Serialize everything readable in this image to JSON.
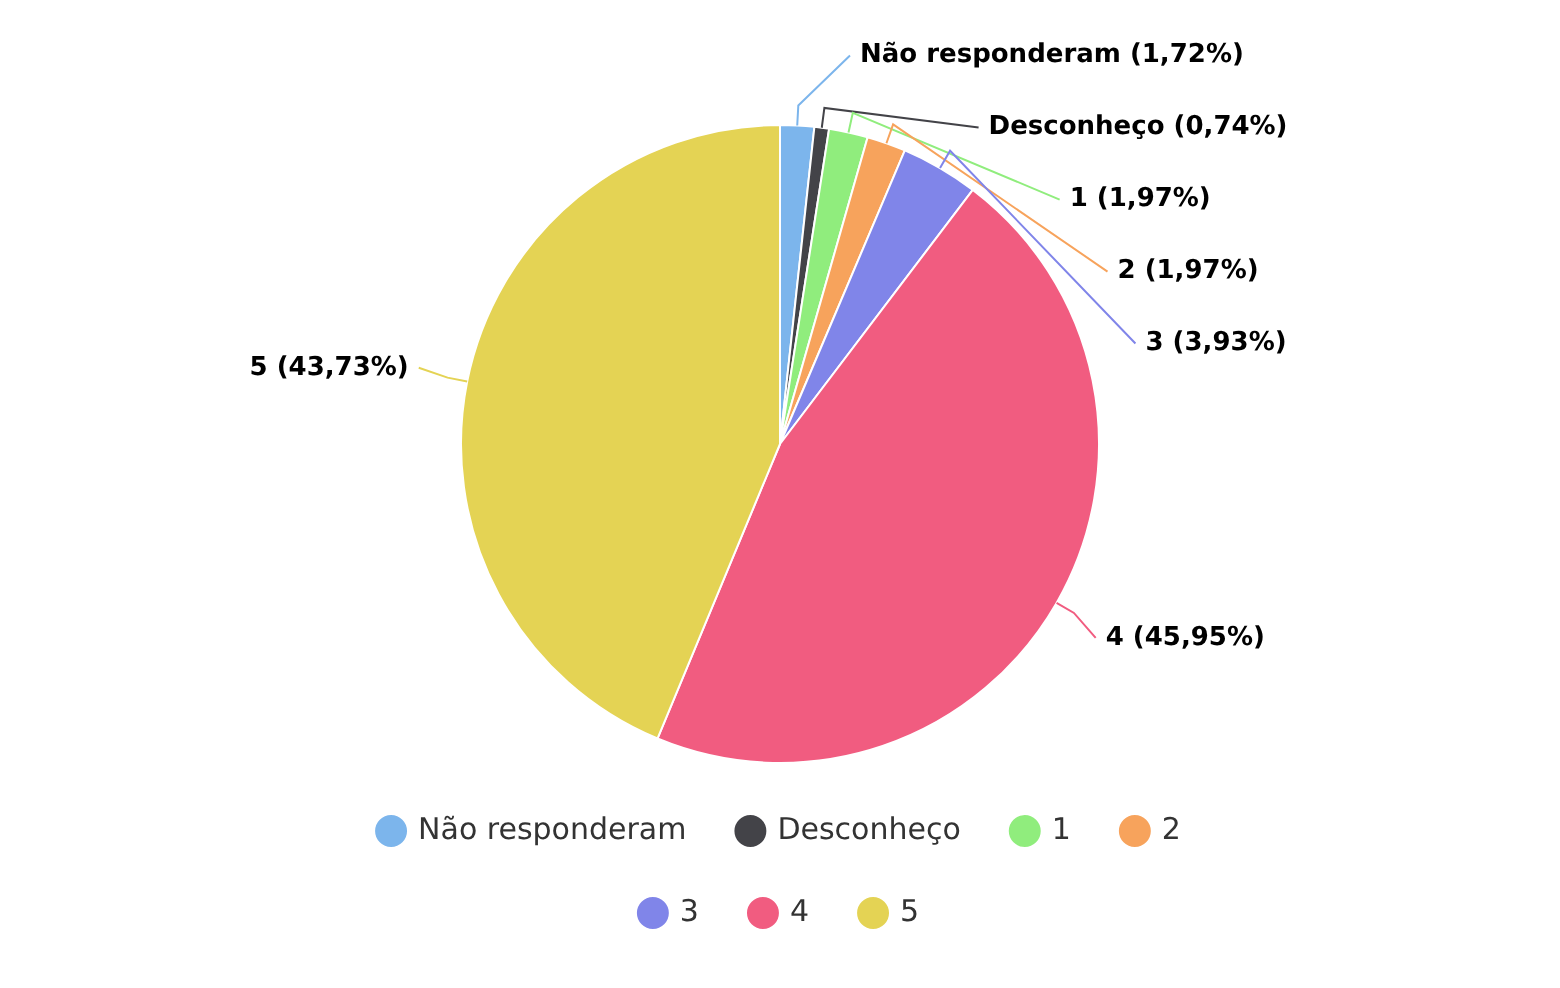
{
  "chart_data": {
    "type": "pie",
    "categories": [
      "Não responderam",
      "Desconheço",
      "1",
      "2",
      "3",
      "4",
      "5"
    ],
    "values": [
      1.72,
      0.74,
      1.97,
      1.97,
      3.93,
      45.95,
      43.73
    ],
    "value_labels": [
      "Não responderam (1,72%)",
      "Desconheço (0,74%)",
      "1 (1,97%)",
      "2 (1,97%)",
      "3 (3,93%)",
      "4 (45,95%)",
      "5 (43,73%)"
    ],
    "colors": [
      "#7cb5ec",
      "#434348",
      "#90ed7d",
      "#f7a35c",
      "#8085e9",
      "#f15c80",
      "#e4d354"
    ],
    "legend": "bottom"
  }
}
